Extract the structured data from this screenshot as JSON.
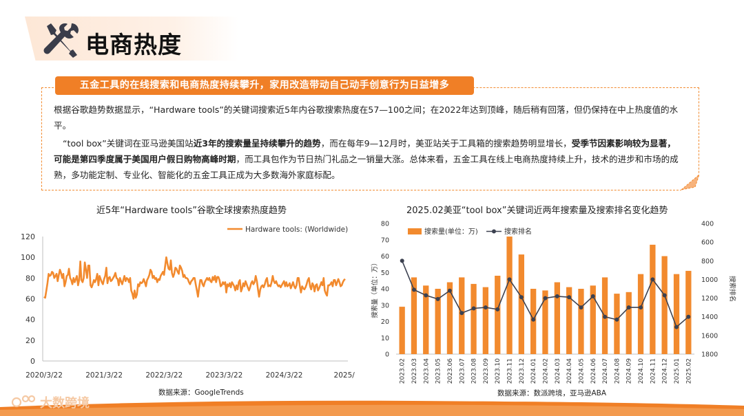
{
  "header": {
    "title": "电商热度",
    "icon": "tools-icon"
  },
  "banner": {
    "text": "五金工具的在线搜索和电商热度持续攀升，家用改造带动自己动手创意行为日益增多"
  },
  "paragraphs": {
    "p1": "根据谷歌趋势数据显示，“Hardware tools”的关键词搜索近5年内谷歌搜索热度在57—100之间；在2022年达到顶峰，随后稍有回落，但仍保持在中上热度值的水平。",
    "p2_a": "“tool box”关键词在亚马逊美国站",
    "p2_b": "近3年的搜索量呈持续攀升的趋势",
    "p2_c": "，而在每年9—12月时，美亚站关于工具箱的搜索趋势明显增长，",
    "p2_d": "受季节因素影响较为显著，可能是第四季度属于美国用户假日购物高峰时期",
    "p2_e": "，而工具包作为节日热门礼品之一销量大涨。总体来看，五金工具在线上电商热度持续上升，技术的进步和市场的成熟，多功能定制、专业化、智能化的五金工具正成为大多数海外家庭标配。"
  },
  "left_chart": {
    "title": "近5年“Hardware tools”谷歌全球搜索热度趋势",
    "source": "数据来源：GoogleTrends"
  },
  "right_chart": {
    "title": "2025.02美亚“tool box”关键词近两年搜索量及搜索排名变化趋势",
    "source": "数据来源：数派跨境，亚马逊ABA"
  },
  "footer": {
    "logo_text": "大数跨境"
  },
  "colors": {
    "accent": "#f07f26",
    "line": "#3c4150",
    "dash": "#f28a2e"
  },
  "chart_data": [
    {
      "type": "line",
      "title": "近5年“Hardware tools”谷歌全球搜索热度趋势",
      "series": [
        {
          "name": "Hardware tools: (Worldwide)",
          "values": [
            62,
            61,
            68,
            75,
            84,
            82,
            83,
            86,
            85,
            80,
            82,
            84,
            77,
            83,
            88,
            85,
            80,
            84,
            72,
            76,
            82,
            83,
            89,
            80,
            78,
            74,
            80,
            76,
            79,
            82,
            73,
            78,
            96,
            78,
            76,
            80,
            95,
            88,
            80,
            92,
            92,
            73,
            71,
            74,
            78,
            76,
            79,
            84,
            73,
            82,
            79,
            76,
            74,
            79,
            82,
            90,
            75,
            80,
            81,
            77,
            78,
            80,
            82,
            85,
            80,
            79,
            73,
            80,
            77,
            74,
            78,
            82,
            77,
            80,
            79,
            76,
            80,
            68,
            65,
            60,
            68,
            61,
            64,
            74,
            72,
            76,
            75,
            76,
            79,
            76,
            72,
            78,
            80,
            83,
            88,
            86,
            80,
            82,
            79,
            80,
            76,
            79,
            78,
            82,
            84,
            86,
            83,
            92,
            100,
            94,
            89,
            88,
            97,
            85,
            81,
            84,
            90,
            89,
            86,
            84,
            92,
            90,
            87,
            81,
            83,
            80,
            80,
            79,
            76,
            74,
            77,
            78,
            80,
            80,
            74,
            68,
            62,
            71,
            78,
            78,
            74,
            72,
            76,
            78,
            80,
            78,
            80,
            77,
            76,
            81,
            78,
            82,
            76,
            81,
            81,
            78,
            72,
            73,
            76,
            74,
            76,
            66,
            74,
            72,
            75,
            71,
            76,
            74,
            72,
            68,
            73,
            69,
            76,
            78,
            67,
            70,
            75,
            72,
            77,
            74,
            71,
            68,
            71,
            75,
            77,
            74,
            76,
            82,
            77,
            69,
            62,
            69,
            72,
            73,
            71,
            74,
            78,
            80,
            72,
            73,
            72,
            76,
            82,
            77,
            75,
            77,
            74,
            72,
            73,
            71,
            73,
            75,
            77,
            72,
            76,
            72,
            73,
            75,
            70,
            73,
            76,
            72,
            70,
            73,
            80,
            80,
            72,
            66,
            72,
            70,
            69,
            71,
            74,
            78,
            80,
            72,
            69,
            75,
            73,
            67,
            73,
            74,
            68,
            70,
            73,
            76,
            73,
            80,
            68,
            65,
            63,
            73,
            73,
            74,
            76,
            72,
            78,
            78,
            73,
            76,
            79,
            76,
            72,
            73,
            76,
            78,
            79
          ]
        }
      ],
      "x_tick_labels": [
        "2020/3/22",
        "2021/3/22",
        "2022/3/22",
        "2023/3/22",
        "2024/3/22",
        "2025/"
      ],
      "ylim": [
        0,
        120
      ],
      "y_ticks": [
        0,
        20,
        40,
        60,
        80,
        100,
        120
      ],
      "legend": "top-right",
      "grid": false
    },
    {
      "type": "bar+line",
      "title": "2025.02美亚“tool box”关键词近两年搜索量及搜索排名变化趋势",
      "categories": [
        "2023.02",
        "2023.03",
        "2023.04",
        "2023.05",
        "2023.06",
        "2023.07",
        "2023.08",
        "2023.09",
        "2023.10",
        "2023.11",
        "2023.12",
        "2024.01",
        "2024.02",
        "2024.03",
        "2024.04",
        "2024.05",
        "2024.06",
        "2024.07",
        "2024.08",
        "2024.09",
        "2024.10",
        "2024.11",
        "2024.12",
        "2025.01",
        "2025.02"
      ],
      "series": [
        {
          "name": "搜索量(单位：万)",
          "type": "bar",
          "axis": "left",
          "values": [
            29,
            47,
            42,
            40,
            44,
            47,
            43,
            41,
            48,
            72,
            61,
            40,
            39,
            44,
            41,
            40,
            42,
            47,
            37,
            38,
            49,
            67,
            60,
            49,
            51
          ]
        },
        {
          "name": "搜索排名",
          "type": "line",
          "axis": "right",
          "values": [
            800,
            1110,
            1170,
            1210,
            1120,
            1360,
            1310,
            1300,
            1320,
            1000,
            1190,
            1430,
            1200,
            1180,
            1190,
            1300,
            1180,
            1400,
            1430,
            1300,
            1300,
            1000,
            1170,
            1510,
            1400
          ]
        }
      ],
      "ylabel": "搜索量（单位：万）",
      "y2label": "搜索排名",
      "ylim": [
        0,
        80
      ],
      "y_ticks": [
        0,
        10,
        20,
        30,
        40,
        50,
        60,
        70,
        80
      ],
      "y2lim": [
        400,
        1800
      ],
      "y2_ticks": [
        400,
        600,
        800,
        1000,
        1200,
        1400,
        1600,
        1800
      ],
      "y2_reversed": true,
      "legend": "top-left",
      "grid": false
    }
  ]
}
